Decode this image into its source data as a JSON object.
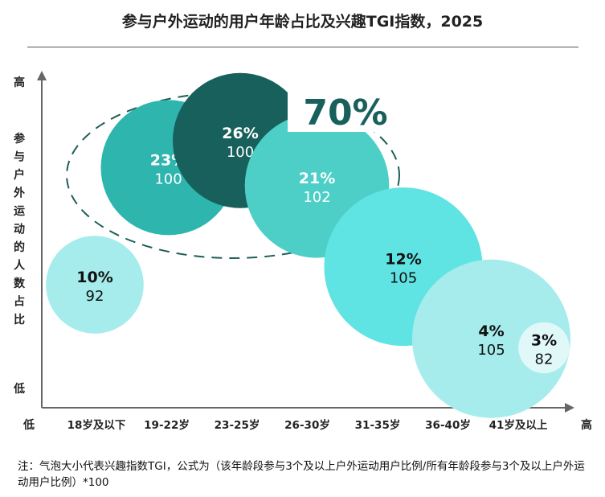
{
  "title": "参与户外运动的用户年龄占比及兴趣TGI指数，2025",
  "note": "注：气泡大小代表兴趣指数TGI，公式为（该年龄段参与3个及以上户外运动用户比例/所有年龄段参与3个及以上户外运动用户比例）*100",
  "chart_data": {
    "type": "scatter",
    "title": "参与户外运动的用户年龄占比及兴趣TGI指数，2025",
    "ylabel": "参与户外运动的人数占比",
    "y_high_label": "高",
    "y_low_label": "低",
    "x_low_label": "低",
    "x_high_label": "高",
    "categories": [
      "18岁及以下",
      "19-22岁",
      "23-25岁",
      "26-30岁",
      "31-35岁",
      "36-40岁",
      "41岁及以上"
    ],
    "points": [
      {
        "category": "18岁及以下",
        "share_label": "10%",
        "share": 10,
        "tgi": 92,
        "color": "#a6ecec"
      },
      {
        "category": "19-22岁",
        "share_label": "23%",
        "share": 23,
        "tgi": 100,
        "color": "#2db5ae"
      },
      {
        "category": "23-25岁",
        "share_label": "26%",
        "share": 26,
        "tgi": 100,
        "color": "#17605b"
      },
      {
        "category": "26-30岁",
        "share_label": "21%",
        "share": 21,
        "tgi": 102,
        "color": "#4dcfc8"
      },
      {
        "category": "31-35岁",
        "share_label": "12%",
        "share": 12,
        "tgi": 105,
        "color": "#5fe3e3"
      },
      {
        "category": "36-40岁",
        "share_label": "4%",
        "share": 4,
        "tgi": 105,
        "color": "#a6ecec"
      },
      {
        "category": "41岁及以上",
        "share_label": "3%",
        "share": 3,
        "tgi": 82,
        "color": "#e0f8f8"
      }
    ],
    "annotation": {
      "label": "70%",
      "color": "#17605b"
    },
    "grid": false,
    "legend": "none"
  }
}
